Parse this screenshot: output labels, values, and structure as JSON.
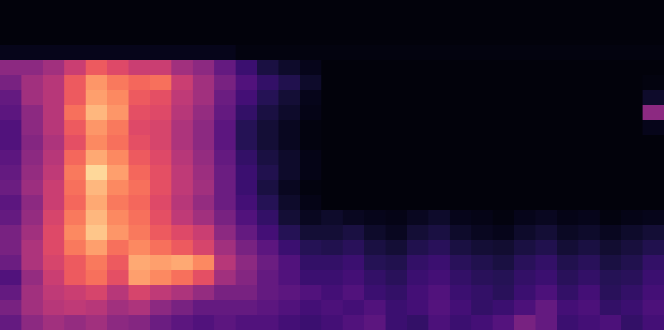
{
  "chart_data": {
    "type": "heatmap",
    "color": "magma",
    "tick_labels": false,
    "zlim": [
      0,
      100
    ],
    "z": [
      [
        2,
        2,
        2,
        2,
        2,
        2,
        2,
        2,
        2,
        2,
        2,
        2,
        2,
        2,
        2,
        2,
        2,
        2,
        2,
        2,
        2,
        2,
        2,
        2,
        2,
        2,
        2,
        2,
        2,
        2,
        2
      ],
      [
        2,
        2,
        2,
        2,
        2,
        2,
        2,
        2,
        2,
        2,
        2,
        2,
        2,
        2,
        2,
        2,
        2,
        2,
        2,
        2,
        2,
        2,
        2,
        2,
        2,
        2,
        2,
        2,
        2,
        2,
        2
      ],
      [
        2,
        2,
        2,
        2,
        2,
        2,
        2,
        2,
        2,
        2,
        2,
        2,
        2,
        2,
        2,
        2,
        2,
        2,
        2,
        2,
        2,
        2,
        2,
        2,
        2,
        2,
        2,
        2,
        2,
        2,
        2
      ],
      [
        5,
        5,
        5,
        5,
        5,
        5,
        5,
        5,
        5,
        5,
        5,
        3,
        3,
        3,
        3,
        3,
        3,
        3,
        3,
        3,
        3,
        3,
        3,
        3,
        3,
        3,
        3,
        3,
        3,
        3,
        3
      ],
      [
        40,
        40,
        45,
        55,
        65,
        60,
        55,
        55,
        45,
        40,
        30,
        20,
        12,
        8,
        5,
        2,
        2,
        2,
        2,
        2,
        2,
        2,
        2,
        2,
        2,
        2,
        2,
        2,
        2,
        2,
        2
      ],
      [
        35,
        45,
        50,
        65,
        78,
        72,
        68,
        70,
        55,
        45,
        35,
        25,
        18,
        14,
        8,
        2,
        2,
        2,
        2,
        2,
        2,
        2,
        2,
        2,
        2,
        2,
        2,
        2,
        2,
        2,
        3
      ],
      [
        30,
        45,
        50,
        65,
        80,
        75,
        65,
        62,
        52,
        45,
        32,
        22,
        15,
        10,
        5,
        2,
        2,
        2,
        2,
        2,
        2,
        2,
        2,
        2,
        2,
        2,
        2,
        2,
        2,
        2,
        8
      ],
      [
        28,
        40,
        50,
        70,
        85,
        78,
        62,
        60,
        50,
        42,
        30,
        18,
        12,
        8,
        4,
        2,
        2,
        2,
        2,
        2,
        2,
        2,
        2,
        2,
        2,
        2,
        2,
        2,
        2,
        2,
        40
      ],
      [
        25,
        40,
        50,
        65,
        78,
        72,
        60,
        58,
        48,
        40,
        28,
        15,
        10,
        6,
        3,
        2,
        2,
        2,
        2,
        2,
        2,
        2,
        2,
        2,
        2,
        2,
        2,
        2,
        2,
        2,
        5
      ],
      [
        25,
        38,
        48,
        62,
        75,
        70,
        62,
        58,
        48,
        40,
        28,
        15,
        10,
        6,
        3,
        2,
        2,
        2,
        2,
        2,
        2,
        2,
        2,
        2,
        2,
        2,
        2,
        2,
        2,
        2,
        2
      ],
      [
        28,
        40,
        50,
        68,
        82,
        75,
        65,
        60,
        50,
        42,
        30,
        18,
        12,
        8,
        4,
        2,
        2,
        2,
        2,
        2,
        2,
        2,
        2,
        2,
        2,
        2,
        2,
        2,
        2,
        2,
        2
      ],
      [
        30,
        42,
        52,
        72,
        92,
        80,
        68,
        62,
        52,
        44,
        32,
        20,
        14,
        8,
        4,
        2,
        2,
        2,
        2,
        2,
        2,
        2,
        2,
        2,
        2,
        2,
        2,
        2,
        2,
        2,
        2
      ],
      [
        32,
        44,
        55,
        70,
        85,
        75,
        70,
        62,
        52,
        45,
        32,
        20,
        12,
        6,
        3,
        2,
        2,
        2,
        2,
        2,
        2,
        2,
        2,
        2,
        2,
        2,
        2,
        2,
        2,
        2,
        2
      ],
      [
        28,
        40,
        55,
        68,
        82,
        72,
        68,
        60,
        50,
        42,
        32,
        22,
        15,
        8,
        4,
        2,
        2,
        2,
        2,
        2,
        2,
        2,
        2,
        2,
        2,
        2,
        2,
        2,
        2,
        2,
        2
      ],
      [
        30,
        42,
        58,
        72,
        85,
        75,
        70,
        62,
        52,
        45,
        35,
        25,
        18,
        10,
        6,
        8,
        6,
        5,
        4,
        6,
        8,
        5,
        4,
        3,
        5,
        6,
        4,
        5,
        3,
        4,
        5
      ],
      [
        35,
        45,
        60,
        75,
        88,
        78,
        72,
        65,
        60,
        55,
        40,
        30,
        22,
        15,
        10,
        10,
        12,
        8,
        6,
        10,
        12,
        8,
        6,
        5,
        8,
        10,
        7,
        8,
        6,
        8,
        10
      ],
      [
        35,
        48,
        60,
        72,
        80,
        70,
        75,
        70,
        65,
        58,
        45,
        35,
        28,
        20,
        15,
        14,
        16,
        12,
        10,
        14,
        16,
        12,
        10,
        9,
        12,
        14,
        10,
        12,
        9,
        11,
        14
      ],
      [
        32,
        48,
        58,
        65,
        72,
        65,
        82,
        80,
        82,
        75,
        50,
        40,
        32,
        25,
        18,
        18,
        20,
        15,
        14,
        18,
        20,
        16,
        14,
        12,
        16,
        18,
        14,
        16,
        12,
        14,
        18
      ],
      [
        25,
        42,
        55,
        65,
        70,
        62,
        80,
        75,
        70,
        62,
        45,
        38,
        30,
        25,
        20,
        20,
        22,
        18,
        16,
        20,
        22,
        18,
        16,
        15,
        18,
        20,
        16,
        18,
        15,
        16,
        20
      ],
      [
        30,
        45,
        52,
        55,
        58,
        50,
        58,
        52,
        48,
        42,
        35,
        35,
        30,
        28,
        25,
        22,
        25,
        20,
        18,
        22,
        25,
        20,
        18,
        16,
        20,
        24,
        18,
        22,
        16,
        18,
        22
      ],
      [
        35,
        45,
        50,
        52,
        50,
        45,
        48,
        40,
        35,
        30,
        30,
        30,
        28,
        25,
        22,
        24,
        22,
        25,
        20,
        22,
        26,
        22,
        18,
        20,
        24,
        30,
        22,
        24,
        18,
        20,
        24
      ],
      [
        30,
        40,
        45,
        42,
        45,
        40,
        38,
        32,
        28,
        25,
        28,
        25,
        25,
        22,
        20,
        22,
        25,
        28,
        20,
        18,
        24,
        20,
        22,
        26,
        35,
        30,
        20,
        22,
        24,
        18,
        22
      ]
    ]
  }
}
